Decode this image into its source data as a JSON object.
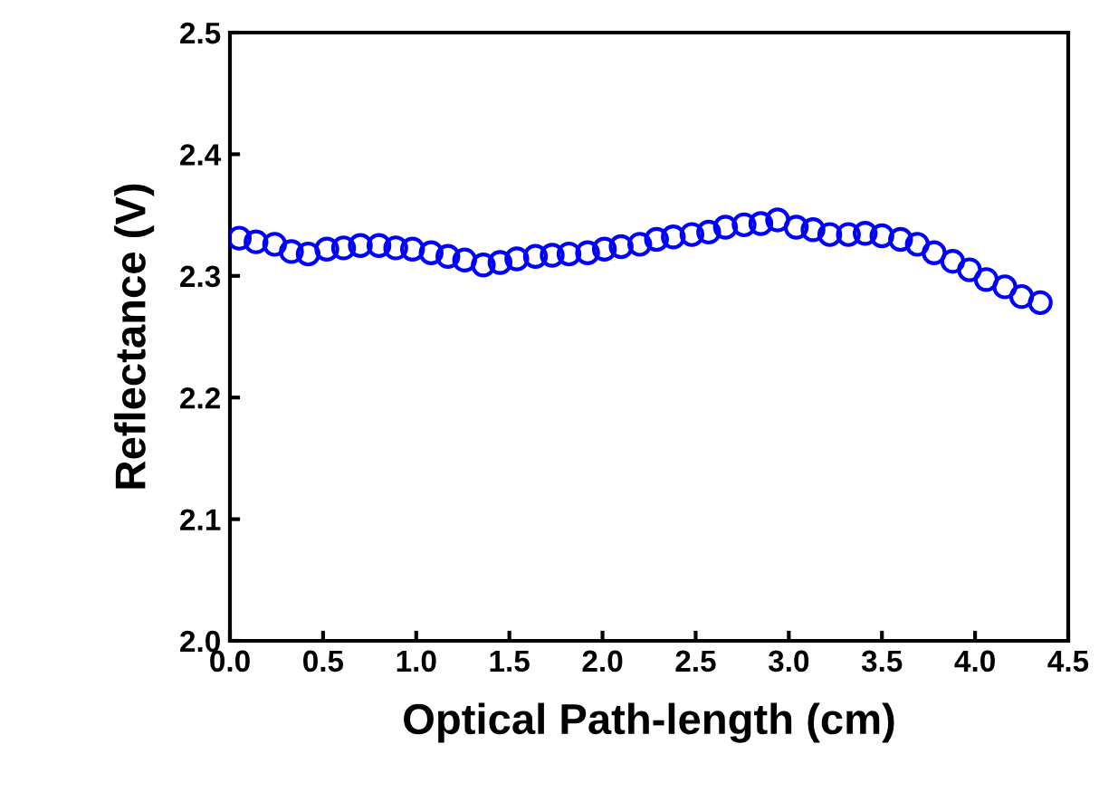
{
  "chart_data": {
    "type": "scatter",
    "xlabel": "Optical Path-length (cm)",
    "ylabel": "Reflectance (V)",
    "xlim": [
      0.0,
      4.5
    ],
    "xticks": [
      {
        "value": 0,
        "label": "0.0"
      },
      0.5,
      {
        "value": 1,
        "label": "1.0"
      },
      1.5,
      {
        "value": 2,
        "label": "2.0"
      },
      2.5,
      {
        "value": 3,
        "label": "3.0"
      },
      3.5,
      {
        "value": 4,
        "label": "4.0"
      },
      4.5
    ],
    "ylim": [
      2.0,
      2.5
    ],
    "yticks": [
      {
        "value": 2,
        "label": "2.0"
      },
      2.1,
      2.2,
      2.3,
      2.4,
      2.5
    ],
    "grid": false,
    "legend": false,
    "marker": "circle",
    "series": [
      {
        "color": "#0000ff",
        "x": [
          0.05,
          0.14,
          0.24,
          0.33,
          0.42,
          0.52,
          0.61,
          0.7,
          0.8,
          0.89,
          0.98,
          1.08,
          1.17,
          1.26,
          1.36,
          1.45,
          1.54,
          1.64,
          1.73,
          1.82,
          1.92,
          2.01,
          2.1,
          2.2,
          2.29,
          2.38,
          2.48,
          2.57,
          2.66,
          2.76,
          2.85,
          2.94,
          3.04,
          3.13,
          3.22,
          3.32,
          3.41,
          3.5,
          3.6,
          3.69,
          3.78,
          3.88,
          3.97,
          4.06,
          4.16,
          4.25,
          4.35
        ],
        "values": [
          2.331,
          2.328,
          2.326,
          2.32,
          2.318,
          2.322,
          2.323,
          2.325,
          2.325,
          2.323,
          2.322,
          2.319,
          2.316,
          2.313,
          2.309,
          2.311,
          2.314,
          2.316,
          2.317,
          2.318,
          2.319,
          2.322,
          2.324,
          2.326,
          2.33,
          2.332,
          2.334,
          2.336,
          2.34,
          2.342,
          2.343,
          2.346,
          2.34,
          2.338,
          2.334,
          2.334,
          2.335,
          2.333,
          2.33,
          2.326,
          2.319,
          2.312,
          2.305,
          2.297,
          2.291,
          2.283,
          2.278
        ]
      }
    ]
  }
}
